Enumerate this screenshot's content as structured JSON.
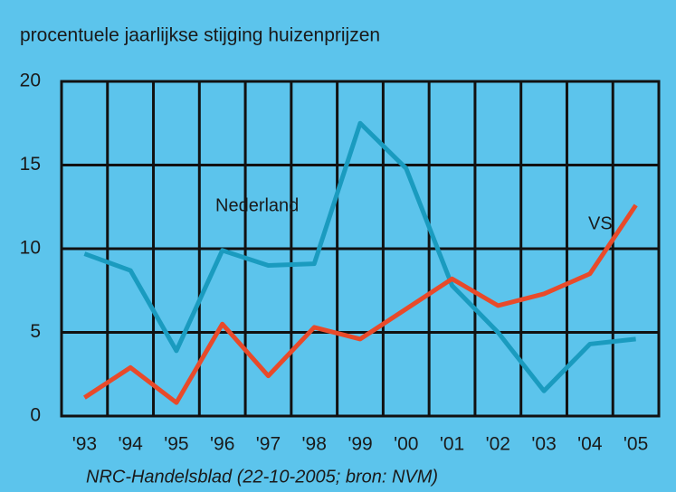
{
  "chart_data": {
    "type": "line",
    "title": "procentuele jaarlijkse stijging huizenprijzen",
    "source": "NRC-Handelsblad (22-10-2005; bron: NVM)",
    "categories": [
      "'93",
      "'94",
      "'95",
      "'96",
      "'97",
      "'98",
      "'99",
      "'00",
      "'01",
      "'02",
      "'03",
      "'04",
      "'05"
    ],
    "series": [
      {
        "name": "Nederland",
        "color": "#1a9bbf",
        "values": [
          9.7,
          8.7,
          3.9,
          9.9,
          9.0,
          9.1,
          17.5,
          14.8,
          7.8,
          5.0,
          1.5,
          4.3,
          4.6
        ]
      },
      {
        "name": "VS",
        "color": "#e84a2a",
        "values": [
          1.1,
          2.9,
          0.8,
          5.5,
          2.4,
          5.3,
          4.6,
          6.4,
          8.2,
          6.6,
          7.3,
          8.5,
          12.6
        ]
      }
    ],
    "ylim": [
      0,
      20
    ],
    "yticks": [
      0,
      5,
      10,
      15,
      20
    ],
    "grid": true
  }
}
